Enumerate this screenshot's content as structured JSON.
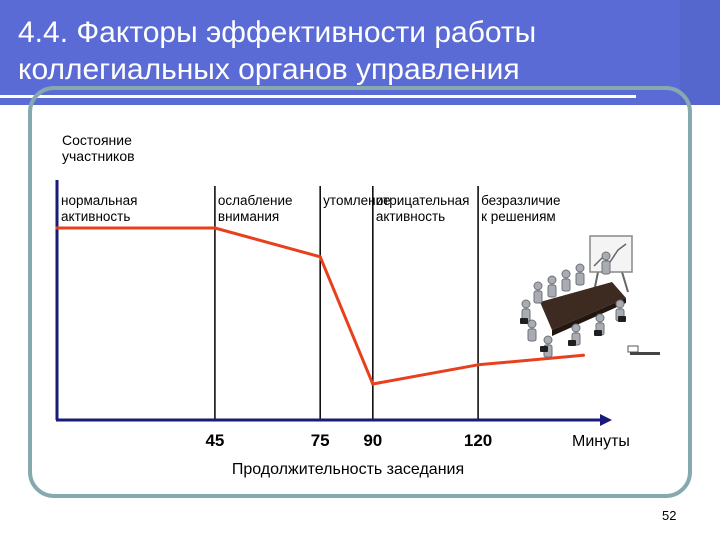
{
  "slide": {
    "title_line1": "4.4. Факторы эффективности работы",
    "title_line2": "коллегиальных органов управления",
    "page_number": "52"
  },
  "chart_data": {
    "type": "line",
    "ylabel_line1": "Состояние",
    "ylabel_line2": "участников",
    "xlabel": "Продолжительность заседания",
    "x_unit": "Минуты",
    "x_ticks": [
      "45",
      "75",
      "90",
      "120"
    ],
    "phases": [
      {
        "line1": "нормальная",
        "line2": "активность"
      },
      {
        "line1": "ослабление",
        "line2": "внимания"
      },
      {
        "line1": "утомление",
        "line2": ""
      },
      {
        "line1": "отрицательная",
        "line2": "активность"
      },
      {
        "line1": "безразличие",
        "line2": "к решениям"
      }
    ],
    "series": [
      {
        "x": [
          0,
          45,
          75,
          90,
          120,
          150
        ],
        "y": [
          80,
          80,
          68,
          15,
          23,
          27
        ]
      }
    ],
    "xlim": [
      0,
      165
    ],
    "ylim": [
      0,
      100
    ],
    "line_color": "#e8401c",
    "grid": false
  }
}
